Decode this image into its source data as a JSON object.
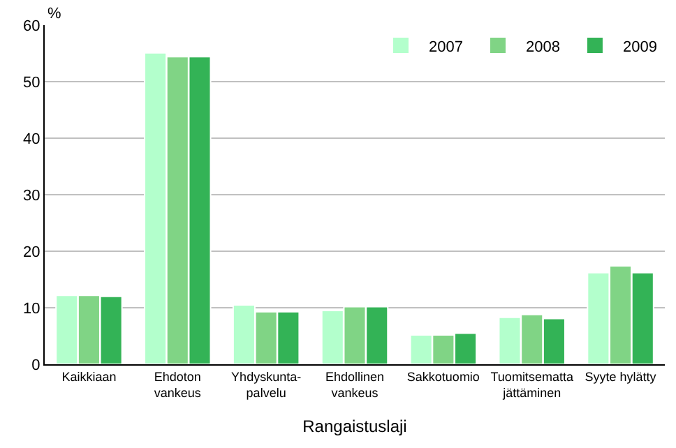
{
  "chart_data": {
    "type": "bar",
    "xlabel": "Rangaistuslaji",
    "ylabel": "%",
    "categories": [
      "Kaikkiaan",
      "Ehdoton\nvankeus",
      "Yhdyskunta-\npalvelu",
      "Ehdollinen\nvankeus",
      "Sakkotuomio",
      "Tuomitsematta\njättäminen",
      "Syyte hylätty"
    ],
    "series": [
      {
        "name": "2007",
        "color": "#b3ffcc",
        "values": [
          12.2,
          55.1,
          10.5,
          9.5,
          5.2,
          8.3,
          16.2
        ]
      },
      {
        "name": "2008",
        "color": "#80d485",
        "values": [
          12.2,
          54.4,
          9.3,
          10.2,
          5.2,
          8.8,
          17.4
        ]
      },
      {
        "name": "2009",
        "color": "#33b356",
        "values": [
          12.0,
          54.4,
          9.3,
          10.2,
          5.5,
          8.1,
          16.2
        ]
      }
    ],
    "ylim": [
      0,
      60
    ],
    "yticks": [
      0,
      10,
      20,
      30,
      40,
      50,
      60
    ],
    "grid": "y",
    "legend": "top right"
  }
}
